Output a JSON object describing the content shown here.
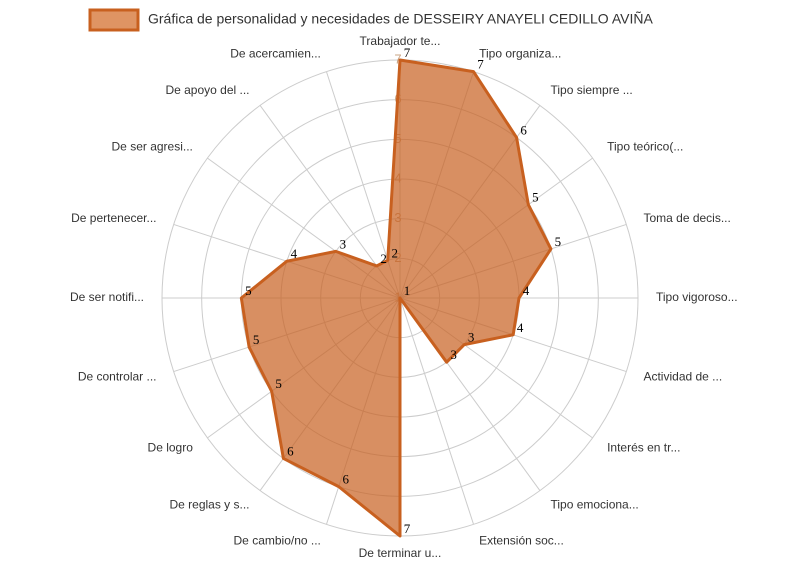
{
  "chart_data": {
    "type": "radar",
    "categories": [
      "Trabajador te...",
      "Tipo organiza...",
      "Tipo siempre ...",
      "Tipo teórico(...",
      "Toma de decis...",
      "Tipo vigoroso...",
      "Actividad de ...",
      "Interés en tr...",
      "Tipo emociona...",
      "Extensión soc...",
      "De terminar u...",
      "De cambio/no ...",
      "De reglas y s...",
      "De logro",
      "De controlar ...",
      "De ser notifi...",
      "De pertenecer...",
      "De ser agresi...",
      "De apoyo del ...",
      "De acercamien..."
    ],
    "series": [
      {
        "name": "Gráfica de personalidad y necesidades de DESSEIRY ANAYELI CEDILLO AVIÑA",
        "color": "#c8601f",
        "values": [
          7,
          7,
          6,
          5,
          5,
          4,
          4,
          3,
          3,
          1,
          7,
          6,
          6,
          5,
          5,
          5,
          4,
          3,
          2,
          2
        ]
      }
    ],
    "rlim": [
      1,
      7
    ],
    "rticks": [
      1,
      2,
      3,
      4,
      5,
      6,
      7
    ],
    "grid": true,
    "legend": "top"
  }
}
